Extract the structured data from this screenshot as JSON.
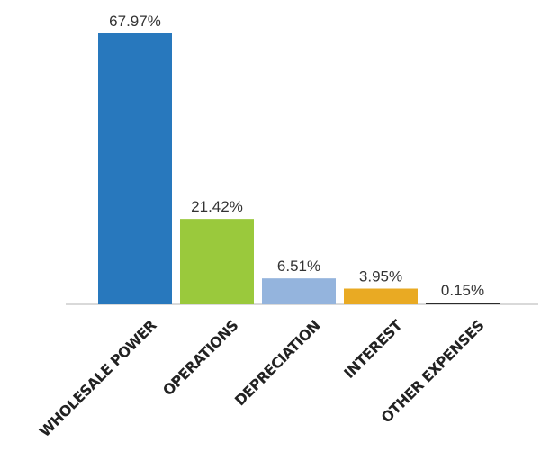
{
  "chart_data": {
    "type": "bar",
    "categories": [
      "WHOLESALE POWER",
      "OPERATIONS",
      "DEPRECIATION",
      "INTEREST",
      "OTHER EXPENSES"
    ],
    "values": [
      67.97,
      21.42,
      6.51,
      3.95,
      0.15
    ],
    "value_labels": [
      "67.97%",
      "21.42%",
      "6.51%",
      "3.95%",
      "0.15%"
    ],
    "colors": [
      "#2878bd",
      "#9ac93c",
      "#94b4dd",
      "#e9aa23",
      "#2b2b2b"
    ],
    "title": "",
    "xlabel": "",
    "ylabel": "",
    "ylim": [
      0,
      67.97
    ],
    "grid": false,
    "legend": "none"
  }
}
